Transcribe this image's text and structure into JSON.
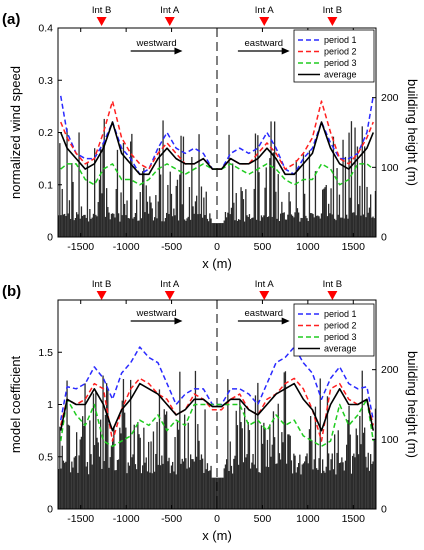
{
  "chart_data": [
    {
      "panel": "(a)",
      "type": "line",
      "xlabel": "x (m)",
      "ylabel": "normalized wind speed",
      "y2label": "building height (m)",
      "xlim": [
        -1750,
        1750
      ],
      "ylim": [
        0,
        0.4
      ],
      "y2lim": [
        0,
        300
      ],
      "xticks": [
        -1500,
        -1000,
        -500,
        0,
        500,
        1000,
        1500
      ],
      "yticks": [
        0,
        0.1,
        0.2,
        0.3,
        0.4
      ],
      "y2ticks": [
        0,
        100,
        200
      ],
      "markers": [
        {
          "label": "Int B",
          "x": -1270
        },
        {
          "label": "Int A",
          "x": -520
        },
        {
          "label": "Int A",
          "x": 520
        },
        {
          "label": "Int B",
          "x": 1270
        }
      ],
      "directions": [
        {
          "label": "westward",
          "from": -950,
          "to": -380
        },
        {
          "label": "eastward",
          "from": 230,
          "to": 800
        }
      ],
      "center_line_x": 0,
      "legend_position": "top-right",
      "series": [
        {
          "name": "period 1",
          "color": "#2a2aff",
          "dash": "dashed",
          "x": [
            -1720,
            -1650,
            -1550,
            -1450,
            -1350,
            -1250,
            -1150,
            -1050,
            -950,
            -850,
            -750,
            -650,
            -550,
            -450,
            -350,
            -250,
            -150,
            -50,
            50,
            150,
            250,
            350,
            450,
            550,
            650,
            750,
            850,
            950,
            1050,
            1150,
            1250,
            1350,
            1450,
            1550,
            1650,
            1720
          ],
          "y": [
            0.27,
            0.2,
            0.16,
            0.15,
            0.15,
            0.18,
            0.22,
            0.17,
            0.15,
            0.12,
            0.13,
            0.17,
            0.2,
            0.17,
            0.16,
            0.17,
            0.16,
            0.13,
            0.13,
            0.16,
            0.17,
            0.16,
            0.17,
            0.2,
            0.17,
            0.13,
            0.12,
            0.15,
            0.17,
            0.22,
            0.18,
            0.15,
            0.15,
            0.16,
            0.2,
            0.27
          ]
        },
        {
          "name": "period 2",
          "color": "#ff2020",
          "dash": "dashed",
          "x": [
            -1720,
            -1650,
            -1550,
            -1450,
            -1350,
            -1250,
            -1150,
            -1050,
            -950,
            -850,
            -750,
            -650,
            -550,
            -450,
            -350,
            -250,
            -150,
            -50,
            50,
            150,
            250,
            350,
            450,
            550,
            650,
            750,
            850,
            950,
            1050,
            1150,
            1250,
            1350,
            1450,
            1550,
            1650,
            1720
          ],
          "y": [
            0.22,
            0.19,
            0.16,
            0.14,
            0.15,
            0.2,
            0.26,
            0.19,
            0.16,
            0.14,
            0.13,
            0.16,
            0.18,
            0.16,
            0.14,
            0.14,
            0.15,
            0.13,
            0.13,
            0.15,
            0.14,
            0.14,
            0.16,
            0.18,
            0.16,
            0.13,
            0.14,
            0.16,
            0.19,
            0.26,
            0.2,
            0.15,
            0.14,
            0.16,
            0.19,
            0.22
          ]
        },
        {
          "name": "period 3",
          "color": "#20cc20",
          "dash": "dashed",
          "x": [
            -1720,
            -1650,
            -1550,
            -1450,
            -1350,
            -1250,
            -1150,
            -1050,
            -950,
            -850,
            -750,
            -650,
            -550,
            -450,
            -350,
            -250,
            -150,
            -50,
            50,
            150,
            250,
            350,
            450,
            550,
            650,
            750,
            850,
            950,
            1050,
            1150,
            1250,
            1350,
            1450,
            1550,
            1650,
            1720
          ],
          "y": [
            0.13,
            0.14,
            0.14,
            0.11,
            0.1,
            0.13,
            0.14,
            0.11,
            0.11,
            0.1,
            0.11,
            0.13,
            0.14,
            0.13,
            0.12,
            0.13,
            0.14,
            0.13,
            0.13,
            0.14,
            0.13,
            0.12,
            0.13,
            0.14,
            0.13,
            0.11,
            0.1,
            0.11,
            0.11,
            0.14,
            0.13,
            0.1,
            0.11,
            0.14,
            0.14,
            0.13
          ]
        },
        {
          "name": "average",
          "color": "#000000",
          "dash": "solid",
          "x": [
            -1720,
            -1650,
            -1550,
            -1450,
            -1350,
            -1250,
            -1150,
            -1050,
            -950,
            -850,
            -750,
            -650,
            -550,
            -450,
            -350,
            -250,
            -150,
            -50,
            50,
            150,
            250,
            350,
            450,
            550,
            650,
            750,
            850,
            950,
            1050,
            1150,
            1250,
            1350,
            1450,
            1550,
            1650,
            1720
          ],
          "y": [
            0.2,
            0.17,
            0.15,
            0.13,
            0.14,
            0.17,
            0.22,
            0.16,
            0.14,
            0.12,
            0.12,
            0.15,
            0.17,
            0.15,
            0.14,
            0.14,
            0.15,
            0.13,
            0.13,
            0.15,
            0.14,
            0.14,
            0.15,
            0.17,
            0.15,
            0.12,
            0.12,
            0.14,
            0.16,
            0.22,
            0.17,
            0.14,
            0.13,
            0.15,
            0.17,
            0.2
          ]
        }
      ]
    },
    {
      "panel": "(b)",
      "type": "line",
      "xlabel": "x (m)",
      "ylabel": "model coefficient",
      "y2label": "building height (m)",
      "xlim": [
        -1750,
        1750
      ],
      "ylim": [
        0,
        2
      ],
      "y2lim": [
        0,
        300
      ],
      "xticks": [
        -1500,
        -1000,
        -500,
        0,
        500,
        1000,
        1500
      ],
      "yticks": [
        0,
        0.5,
        1,
        1.5
      ],
      "y2ticks": [
        0,
        100,
        200
      ],
      "markers": [
        {
          "label": "Int B",
          "x": -1270
        },
        {
          "label": "Int A",
          "x": -520
        },
        {
          "label": "Int A",
          "x": 520
        },
        {
          "label": "Int B",
          "x": 1270
        }
      ],
      "directions": [
        {
          "label": "westward",
          "from": -950,
          "to": -380
        },
        {
          "label": "eastward",
          "from": 230,
          "to": 800
        }
      ],
      "center_line_x": 0,
      "legend_position": "top-right",
      "series": [
        {
          "name": "period 1",
          "color": "#2a2aff",
          "dash": "dashed",
          "x": [
            -1720,
            -1650,
            -1550,
            -1450,
            -1350,
            -1250,
            -1150,
            -1050,
            -950,
            -850,
            -750,
            -650,
            -550,
            -450,
            -350,
            -250,
            -150,
            -50,
            50,
            150,
            250,
            350,
            450,
            550,
            650,
            750,
            850,
            950,
            1050,
            1150,
            1250,
            1350,
            1450,
            1550,
            1650,
            1720
          ],
          "y": [
            0.85,
            1.17,
            1.15,
            1.2,
            1.36,
            1.25,
            1.05,
            1.3,
            1.4,
            1.55,
            1.45,
            1.4,
            1.2,
            1.0,
            1.1,
            1.15,
            1.15,
            1.0,
            1.0,
            1.15,
            1.15,
            1.1,
            1.0,
            1.2,
            1.4,
            1.45,
            1.55,
            1.4,
            1.3,
            1.05,
            1.25,
            1.36,
            1.2,
            1.15,
            1.17,
            0.85
          ]
        },
        {
          "name": "period 2",
          "color": "#ff2020",
          "dash": "dashed",
          "x": [
            -1720,
            -1650,
            -1550,
            -1450,
            -1350,
            -1250,
            -1150,
            -1050,
            -950,
            -850,
            -750,
            -650,
            -550,
            -450,
            -350,
            -250,
            -150,
            -50,
            50,
            150,
            250,
            350,
            450,
            550,
            650,
            750,
            850,
            950,
            1050,
            1150,
            1250,
            1350,
            1450,
            1550,
            1650,
            1720
          ],
          "y": [
            0.8,
            1.05,
            1.0,
            1.05,
            1.2,
            1.15,
            0.65,
            0.95,
            1.15,
            1.25,
            1.2,
            1.1,
            1.05,
            0.9,
            0.95,
            1.1,
            1.05,
            0.95,
            0.95,
            1.05,
            1.1,
            0.95,
            0.9,
            1.05,
            1.1,
            1.2,
            1.25,
            1.15,
            0.95,
            0.65,
            1.15,
            1.2,
            1.05,
            1.0,
            1.05,
            0.8
          ]
        },
        {
          "name": "period 3",
          "color": "#20cc20",
          "dash": "dashed",
          "x": [
            -1720,
            -1650,
            -1550,
            -1450,
            -1350,
            -1250,
            -1150,
            -1050,
            -950,
            -850,
            -750,
            -650,
            -550,
            -450,
            -350,
            -250,
            -150,
            -50,
            50,
            150,
            250,
            350,
            450,
            550,
            650,
            750,
            850,
            950,
            1050,
            1150,
            1250,
            1350,
            1450,
            1550,
            1650,
            1720
          ],
          "y": [
            0.65,
            1.05,
            0.9,
            0.8,
            1.0,
            0.65,
            0.6,
            0.65,
            0.7,
            0.85,
            0.8,
            0.9,
            0.75,
            0.85,
            0.8,
            1.0,
            1.0,
            1.0,
            1.0,
            1.0,
            1.0,
            0.8,
            0.85,
            0.75,
            0.9,
            0.8,
            0.85,
            0.7,
            0.65,
            0.6,
            0.65,
            1.0,
            0.8,
            0.9,
            1.05,
            0.65
          ]
        },
        {
          "name": "average",
          "color": "#000000",
          "dash": "solid",
          "x": [
            -1720,
            -1650,
            -1550,
            -1450,
            -1350,
            -1250,
            -1150,
            -1050,
            -950,
            -850,
            -750,
            -650,
            -550,
            -450,
            -350,
            -250,
            -150,
            -50,
            50,
            150,
            250,
            350,
            450,
            550,
            650,
            750,
            850,
            950,
            1050,
            1150,
            1250,
            1350,
            1450,
            1550,
            1650,
            1720
          ],
          "y": [
            0.75,
            1.05,
            1.0,
            1.0,
            1.15,
            1.0,
            0.75,
            0.95,
            1.05,
            1.2,
            1.15,
            1.1,
            1.0,
            0.9,
            0.95,
            1.05,
            1.05,
            0.98,
            0.98,
            1.05,
            1.05,
            0.95,
            0.9,
            1.0,
            1.1,
            1.15,
            1.2,
            1.05,
            0.95,
            0.75,
            1.0,
            1.15,
            1.0,
            1.0,
            1.05,
            0.75
          ]
        }
      ]
    }
  ]
}
